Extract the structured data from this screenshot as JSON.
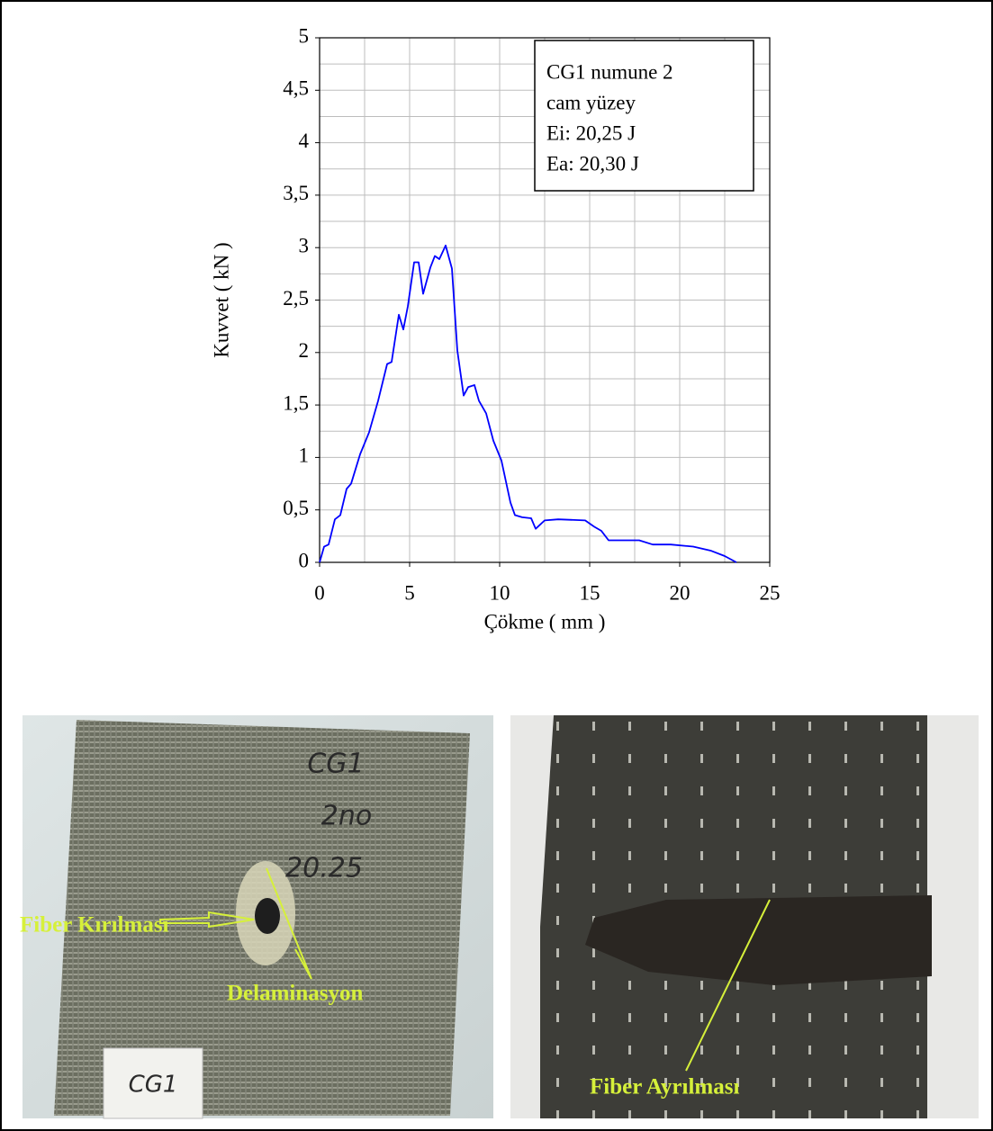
{
  "chart_data": {
    "type": "line",
    "x": [
      0,
      0.25,
      0.5,
      0.85,
      1.15,
      1.5,
      1.75,
      2.25,
      2.75,
      3.25,
      3.75,
      4.0,
      4.4,
      4.65,
      4.9,
      5.25,
      5.5,
      5.75,
      6.15,
      6.4,
      6.65,
      7.0,
      7.35,
      7.65,
      8.0,
      8.25,
      8.6,
      8.85,
      9.25,
      9.65,
      10.1,
      10.6,
      10.85,
      11.25,
      11.75,
      12.0,
      12.5,
      13.25,
      14.75,
      15.25,
      15.65,
      16.05,
      16.75,
      17.75,
      18.5,
      19.5,
      20.75,
      21.75,
      22.5,
      23.15
    ],
    "values": [
      0,
      0.15,
      0.17,
      0.41,
      0.45,
      0.7,
      0.75,
      1.03,
      1.24,
      1.54,
      1.89,
      1.91,
      2.36,
      2.22,
      2.44,
      2.86,
      2.86,
      2.56,
      2.81,
      2.92,
      2.89,
      3.02,
      2.8,
      2.02,
      1.59,
      1.67,
      1.69,
      1.54,
      1.42,
      1.16,
      0.97,
      0.57,
      0.45,
      0.43,
      0.42,
      0.32,
      0.4,
      0.41,
      0.4,
      0.34,
      0.3,
      0.21,
      0.21,
      0.21,
      0.17,
      0.17,
      0.15,
      0.11,
      0.06,
      0
    ],
    "color": "#0000ff",
    "xlabel": "Çökme ( mm )",
    "ylabel": "Kuvvet ( kN )",
    "xlim": [
      0,
      25
    ],
    "xticks": [
      0,
      5,
      10,
      15,
      20,
      25
    ],
    "ylim": [
      0,
      5
    ],
    "yticks": [
      0,
      {
        "value": 0.5,
        "label": "0,5"
      },
      1,
      {
        "value": 1.5,
        "label": "1,5"
      },
      2,
      {
        "value": 2.5,
        "label": "2,5"
      },
      3,
      {
        "value": 3.5,
        "label": "3,5"
      },
      4,
      {
        "value": 4.5,
        "label": "4,5"
      },
      5
    ],
    "grid": true,
    "annotation": [
      "CG1 numune 2",
      "cam yüzey",
      "Ei: 20,25 J",
      "Ea: 20,30 J"
    ]
  },
  "photos": [
    {
      "handwriting": [
        "CG1",
        "2no",
        "20.25"
      ],
      "card": "CG1",
      "labels": [
        "Fiber Kırılması",
        "Delaminasyon"
      ]
    },
    {
      "labels": [
        "Fiber Ayrılması"
      ]
    }
  ]
}
